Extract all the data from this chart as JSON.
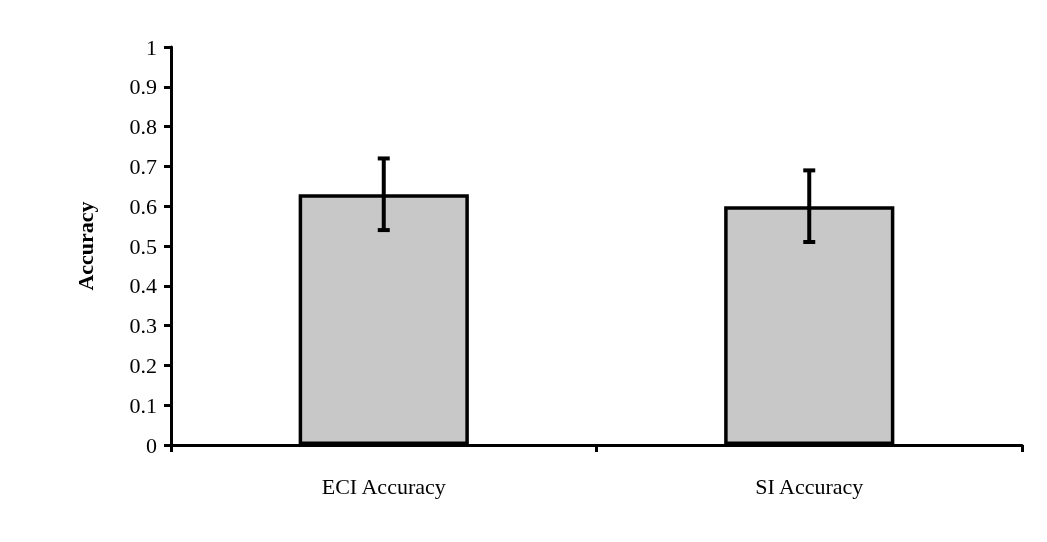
{
  "chart_data": {
    "type": "bar",
    "ylabel": "Accuracy",
    "categories": [
      "ECI Accuracy",
      "SI Accuracy"
    ],
    "values": [
      0.63,
      0.6
    ],
    "errors": [
      0.09,
      0.09
    ],
    "color": "#c8c8c8",
    "ylim": [
      0,
      1
    ],
    "yticks": [
      0,
      0.1,
      0.2,
      0.3,
      0.4,
      0.5,
      0.6,
      0.7,
      0.8,
      0.9,
      1
    ],
    "grid": false
  }
}
